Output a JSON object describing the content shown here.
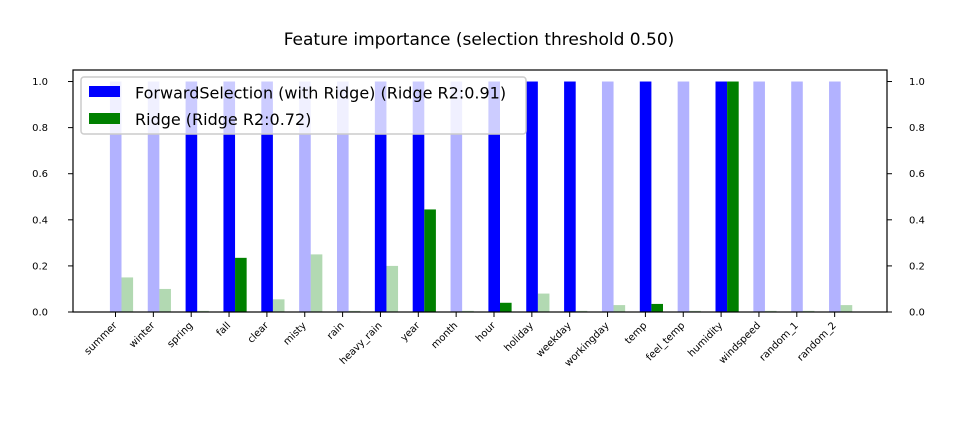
{
  "chart_data": {
    "type": "bar",
    "title": "Feature importance (selection threshold 0.50)",
    "xlabel": "",
    "ylabel": "",
    "ylim": [
      0,
      1.05
    ],
    "yticks": [
      "0.0",
      "0.2",
      "0.4",
      "0.6",
      "0.8",
      "1.0"
    ],
    "right_axis_ticks": true,
    "grid": false,
    "legend_position": "top-left",
    "categories": [
      "summer",
      "winter",
      "spring",
      "fall",
      "clear",
      "misty",
      "rain",
      "heavy_rain",
      "year",
      "month",
      "hour",
      "holiday",
      "weekday",
      "workingday",
      "temp",
      "feel_temp",
      "humidity",
      "windspeed",
      "random_1",
      "random_2"
    ],
    "series": [
      {
        "name": "ForwardSelection (with Ridge) (Ridge R2:0.91)",
        "color": "#0000ff",
        "values": [
          1,
          1,
          1,
          1,
          1,
          1,
          1,
          1,
          1,
          1,
          1,
          1,
          1,
          1,
          1,
          1,
          1,
          1,
          1,
          1
        ],
        "selected": [
          false,
          false,
          true,
          true,
          true,
          false,
          false,
          true,
          true,
          false,
          true,
          true,
          true,
          false,
          true,
          false,
          true,
          false,
          false,
          false
        ]
      },
      {
        "name": "Ridge (Ridge R2:0.72)",
        "color": "#008000",
        "values": [
          0.15,
          0.1,
          0.005,
          0.235,
          0.055,
          0.25,
          0.005,
          0.2,
          0.445,
          0.005,
          0.04,
          0.08,
          0.005,
          0.03,
          0.035,
          0.005,
          1.0,
          0.005,
          0.005,
          0.03
        ],
        "selected": [
          false,
          false,
          false,
          true,
          false,
          false,
          false,
          false,
          true,
          false,
          true,
          false,
          false,
          false,
          true,
          false,
          true,
          false,
          false,
          false
        ]
      }
    ]
  }
}
